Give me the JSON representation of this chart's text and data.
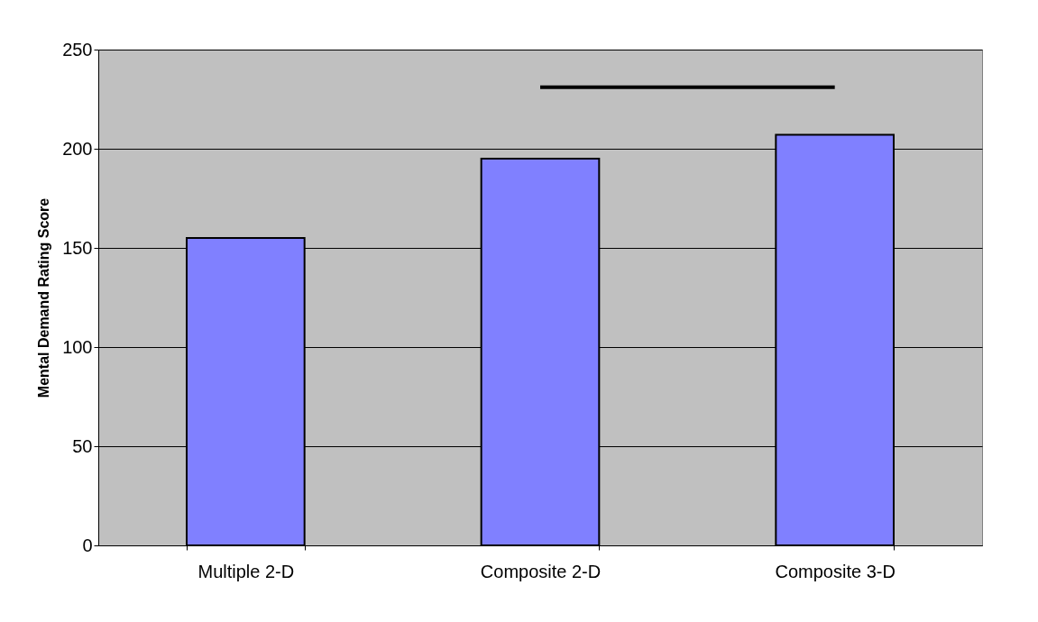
{
  "chart_data": {
    "type": "bar",
    "ylabel": "Mental Demand Rating Score",
    "categories": [
      "Multiple 2-D",
      "Composite 2-D",
      "Composite 3-D"
    ],
    "series": [
      {
        "color": "#8080ff",
        "values": [
          155,
          195,
          207
        ]
      },
      {
        "type": "line",
        "color": "#000000",
        "x": [
          "Composite 2-D",
          "Composite 3-D"
        ],
        "values": [
          231,
          231
        ]
      }
    ],
    "ylim": [
      0,
      250
    ],
    "yticks": [
      0,
      50,
      100,
      150,
      200,
      250
    ],
    "grid": "y"
  }
}
